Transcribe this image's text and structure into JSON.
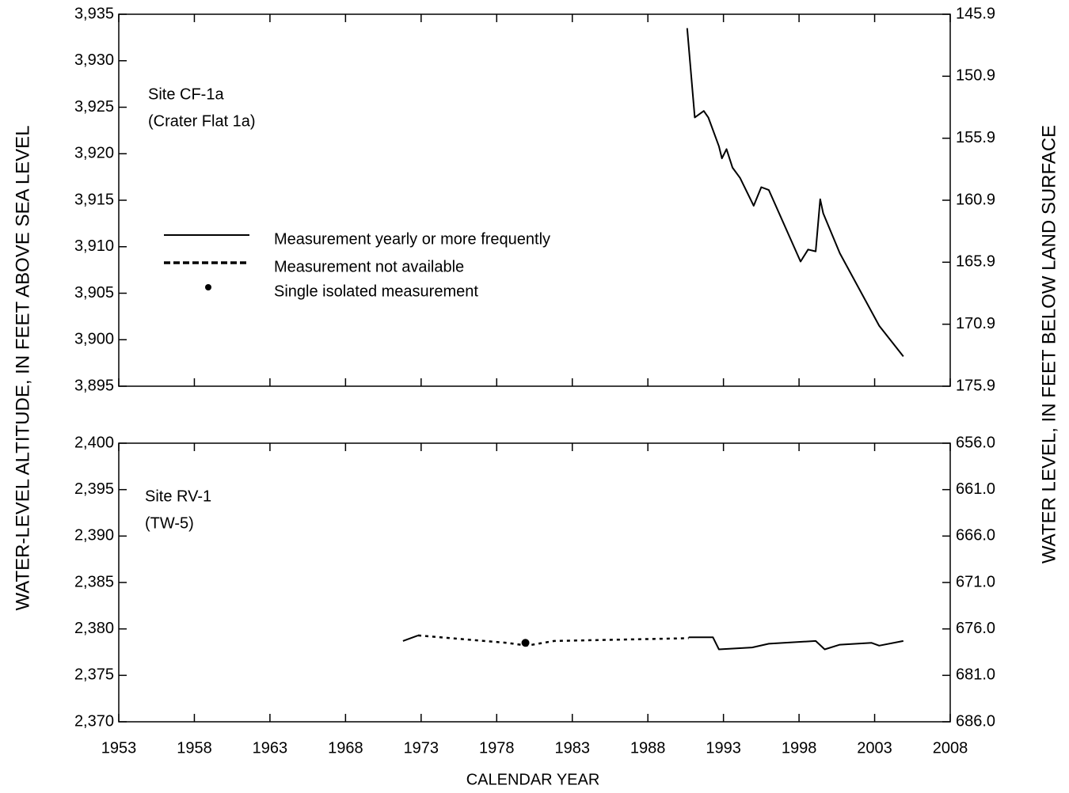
{
  "chart_data": [
    {
      "type": "line",
      "annotations": [
        "Site CF-1a",
        "(Crater Flat 1a)"
      ],
      "xlim": [
        1953,
        2008
      ],
      "xticks": [
        1953,
        1958,
        1963,
        1968,
        1973,
        1978,
        1983,
        1988,
        1993,
        1998,
        2003,
        2008
      ],
      "show_xtick_labels": false,
      "ylim": [
        3895,
        3935
      ],
      "yticks": [
        {
          "value": 3895,
          "label": "3,895"
        },
        {
          "value": 3900,
          "label": "3,900"
        },
        {
          "value": 3905,
          "label": "3,905"
        },
        {
          "value": 3910,
          "label": "3,910"
        },
        {
          "value": 3915,
          "label": "3,915"
        },
        {
          "value": 3920,
          "label": "3,920"
        },
        {
          "value": 3925,
          "label": "3,925"
        },
        {
          "value": 3930,
          "label": "3,930"
        },
        {
          "value": 3935,
          "label": "3,935"
        }
      ],
      "y2lim": [
        175.9,
        145.9
      ],
      "y2ticks": [
        175.9,
        170.9,
        165.9,
        160.9,
        155.9,
        150.9,
        145.9
      ],
      "legend": [
        {
          "label": "Measurement yearly or more frequently",
          "style": "solid"
        },
        {
          "label": "Measurement not available",
          "style": "dotted"
        },
        {
          "label": "Single isolated measurement",
          "style": "point"
        }
      ],
      "color": "#000000",
      "series": [
        {
          "style": "solid",
          "x": [
            1990.6,
            1991.1,
            1991.7,
            1992.0,
            1992.7,
            1992.9,
            1993.2,
            1993.6,
            1994.1,
            1995.0,
            1995.5,
            1996.0,
            1998.1,
            1998.6,
            1999.1,
            1999.4,
            1999.6,
            2000.7,
            2003.3,
            2004.9
          ],
          "values": [
            3933.5,
            3923.9,
            3924.6,
            3923.9,
            3920.8,
            3919.5,
            3920.5,
            3918.5,
            3917.4,
            3914.4,
            3916.4,
            3916.1,
            3908.4,
            3909.7,
            3909.5,
            3915.1,
            3913.6,
            3909.3,
            3901.5,
            3898.2
          ]
        }
      ]
    },
    {
      "type": "line",
      "annotations": [
        "Site RV-1",
        "(TW-5)"
      ],
      "xlim": [
        1953,
        2008
      ],
      "xticks": [
        1953,
        1958,
        1963,
        1968,
        1973,
        1978,
        1983,
        1988,
        1993,
        1998,
        2003,
        2008
      ],
      "show_xtick_labels": true,
      "ylim": [
        2370,
        2400
      ],
      "yticks": [
        {
          "value": 2370,
          "label": "2,370"
        },
        {
          "value": 2375,
          "label": "2,375"
        },
        {
          "value": 2380,
          "label": "2,380"
        },
        {
          "value": 2385,
          "label": "2,385"
        },
        {
          "value": 2390,
          "label": "2,390"
        },
        {
          "value": 2395,
          "label": "2,395"
        },
        {
          "value": 2400,
          "label": "2,400"
        }
      ],
      "y2lim": [
        686,
        656
      ],
      "y2ticks": [
        {
          "value": 686,
          "label": "686.0"
        },
        {
          "value": 681,
          "label": "681.0"
        },
        {
          "value": 676,
          "label": "676.0"
        },
        {
          "value": 671,
          "label": "671.0"
        },
        {
          "value": 666,
          "label": "666.0"
        },
        {
          "value": 661,
          "label": "661.0"
        },
        {
          "value": 656,
          "label": "656.0"
        }
      ],
      "color": "#000000",
      "series": [
        {
          "style": "solid",
          "x": [
            1971.8,
            1972.8,
            null,
            1990.7,
            1992.3,
            1992.7,
            1994.9,
            1996.0,
            1999.1,
            1999.7,
            2000.7,
            2002.8,
            2003.3,
            2004.9
          ],
          "values": [
            2378.7,
            2379.3,
            null,
            2379.1,
            2379.1,
            2377.8,
            2378.0,
            2378.4,
            2378.7,
            2377.8,
            2378.3,
            2378.5,
            2378.2,
            2378.7
          ]
        },
        {
          "style": "dotted",
          "x": [
            1972.8,
            1978.7,
            1980.0,
            1981.8,
            1990.7
          ],
          "values": [
            2379.3,
            2378.5,
            2378.2,
            2378.7,
            2379.0
          ]
        },
        {
          "style": "point",
          "x": [
            1979.9
          ],
          "values": [
            2378.5
          ]
        }
      ]
    }
  ],
  "shared": {
    "ylabel": "WATER-LEVEL ALTITUDE, IN FEET ABOVE SEA LEVEL",
    "y2label": "WATER LEVEL, IN FEET BELOW LAND SURFACE",
    "xlabel": "CALENDAR YEAR"
  }
}
